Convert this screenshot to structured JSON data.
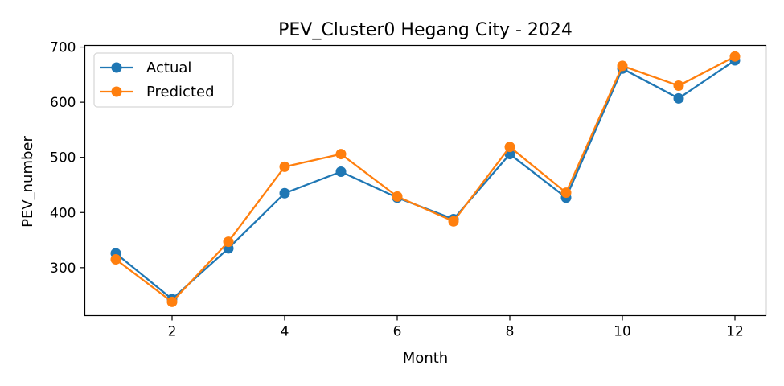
{
  "chart_data": {
    "type": "line",
    "title": "PEV_Cluster0 Hegang City - 2024",
    "xlabel": "Month",
    "ylabel": "PEV_number",
    "x": [
      1,
      2,
      3,
      4,
      5,
      6,
      7,
      8,
      9,
      10,
      11,
      12
    ],
    "xticks": [
      2,
      4,
      6,
      8,
      10,
      12
    ],
    "yticks": [
      300,
      400,
      500,
      600,
      700
    ],
    "xlim": [
      0.45,
      12.55
    ],
    "ylim": [
      213,
      703
    ],
    "grid": false,
    "legend_position": "top-left",
    "series": [
      {
        "name": "Actual",
        "color": "#1f77b4",
        "values": [
          326,
          243,
          335,
          435,
          474,
          427,
          388,
          506,
          427,
          661,
          607,
          676
        ]
      },
      {
        "name": "Predicted",
        "color": "#ff7f0e",
        "values": [
          315,
          238,
          347,
          483,
          506,
          429,
          384,
          519,
          436,
          666,
          630,
          683
        ]
      }
    ]
  }
}
